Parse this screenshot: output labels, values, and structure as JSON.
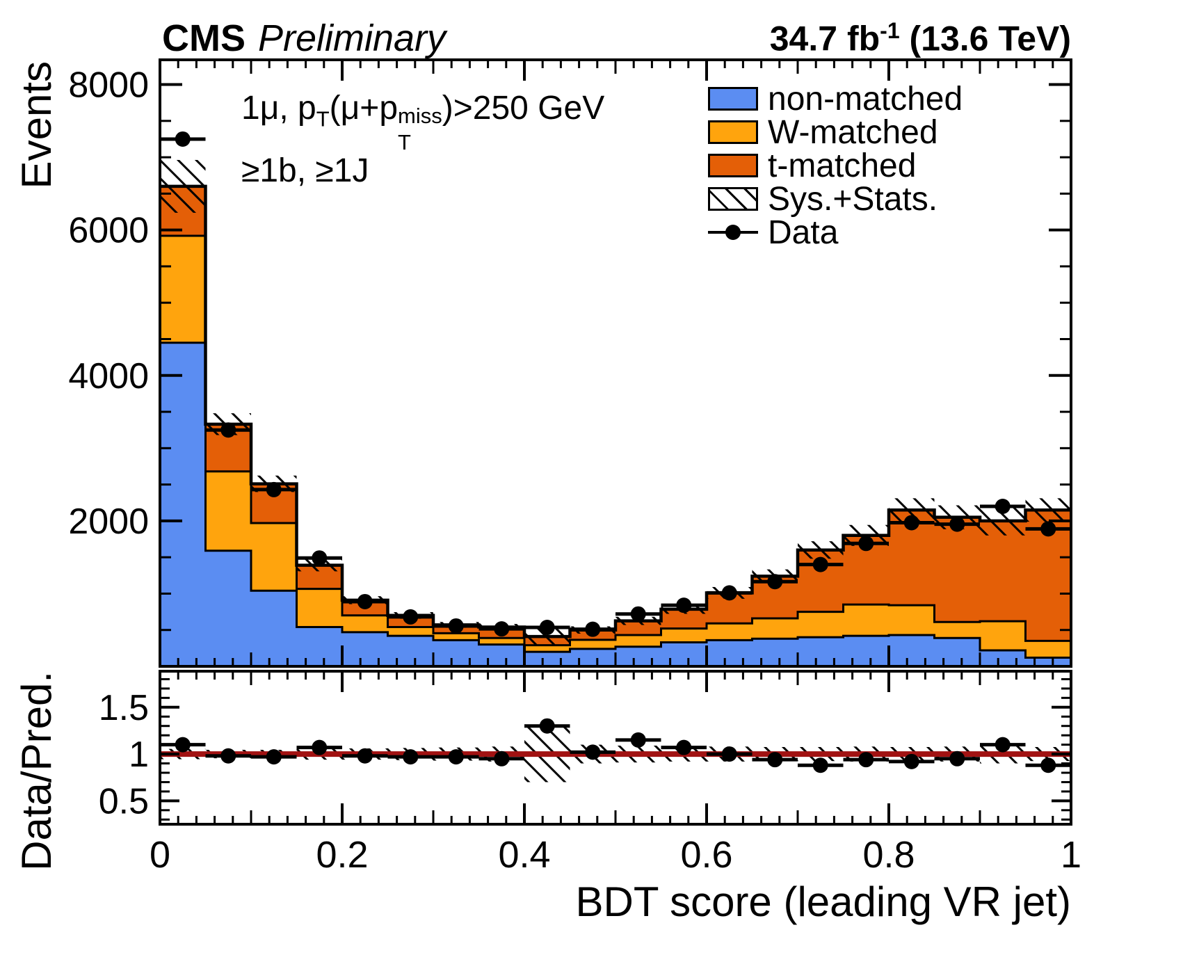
{
  "header": {
    "experiment": "CMS",
    "status": "Preliminary",
    "lumi_value": "34.7 fb",
    "lumi_sup": "-1",
    "lumi_energy": " (13.6 TeV)"
  },
  "annotation": {
    "line1_a": "1μ, p",
    "line1_sub1": "T",
    "line1_b": "(μ+p",
    "line1_sup2": "miss",
    "line1_sub2": "T",
    "line1_c": ")>250 GeV",
    "line2": "≥1b, ≥1J"
  },
  "legend": {
    "items": [
      {
        "label": "non-matched",
        "type": "fill",
        "color": "#5b8df2"
      },
      {
        "label": "W-matched",
        "type": "fill",
        "color": "#ffa40d"
      },
      {
        "label": "t-matched",
        "type": "fill",
        "color": "#e45f07"
      },
      {
        "label": "Sys.+Stats.",
        "type": "hatch",
        "color": "#ffffff"
      },
      {
        "label": "Data",
        "type": "marker",
        "color": "#000000"
      }
    ]
  },
  "axes": {
    "y_title": "Events",
    "ratio_y_title": "Data/Pred.",
    "x_title": "BDT score (leading VR jet)"
  },
  "colors": {
    "non_matched": "#5b8df2",
    "w_matched": "#ffa40d",
    "t_matched": "#e45f07",
    "ratio_line": "#a11212",
    "frame": "#000000",
    "background": "#ffffff"
  },
  "chart_data": {
    "type": "bar",
    "subtype": "stacked-histogram-with-ratio-panel",
    "title": "",
    "xlabel": "BDT score (leading VR jet)",
    "ylabel": "Events",
    "ratio_ylabel": "Data/Pred.",
    "xlim": [
      0,
      1
    ],
    "ylim": [
      0,
      8340
    ],
    "ratio_ylim": [
      0.25,
      1.885
    ],
    "x_major_ticks": [
      0,
      0.2,
      0.4,
      0.6,
      0.8,
      1
    ],
    "x_tick_labels": [
      "0",
      "0.2",
      "0.4",
      "0.6",
      "0.8",
      "1"
    ],
    "x_mid_step": 0.1,
    "x_minor_step": 0.02,
    "y_major_ticks": [
      2000,
      4000,
      6000,
      8000
    ],
    "y_tick_labels": [
      "2000",
      "4000",
      "6000",
      "8000"
    ],
    "y_minor_step": 500,
    "ratio_major_ticks": [
      0.5,
      1,
      1.5
    ],
    "ratio_tick_labels": [
      "0.5",
      "1",
      "1.5"
    ],
    "ratio_minor_step": 0.1,
    "ratio_reference_line": 1.0,
    "grid": false,
    "legend_position": "top-right",
    "bin_edges": [
      0,
      0.05,
      0.1,
      0.15,
      0.2,
      0.25,
      0.3,
      0.35,
      0.4,
      0.45,
      0.5,
      0.55,
      0.6,
      0.65,
      0.7,
      0.75,
      0.8,
      0.85,
      0.9,
      0.95,
      1.0
    ],
    "series": [
      {
        "name": "non-matched",
        "color": "#5b8df2",
        "values": [
          4450,
          1590,
          1040,
          540,
          470,
          420,
          360,
          300,
          200,
          240,
          270,
          330,
          360,
          380,
          400,
          420,
          430,
          390,
          220,
          120
        ]
      },
      {
        "name": "W-matched",
        "color": "#ffa40d",
        "values": [
          1470,
          1090,
          930,
          525,
          230,
          120,
          95,
          90,
          90,
          125,
          160,
          190,
          230,
          280,
          350,
          430,
          410,
          220,
          400,
          230
        ]
      },
      {
        "name": "t-matched",
        "color": "#e45f07",
        "values": [
          680,
          650,
          540,
          325,
          210,
          160,
          115,
          150,
          120,
          135,
          195,
          265,
          420,
          580,
          850,
          950,
          1310,
          1440,
          1380,
          1800
        ]
      }
    ],
    "totals": [
      6600,
      3330,
      2510,
      1390,
      910,
      700,
      570,
      540,
      410,
      500,
      625,
      785,
      1010,
      1240,
      1600,
      1800,
      2150,
      2050,
      2000,
      2150
    ],
    "sys_rel": [
      0.055,
      0.045,
      0.045,
      0.06,
      0.06,
      0.065,
      0.07,
      0.08,
      0.3,
      0.1,
      0.09,
      0.08,
      0.08,
      0.075,
      0.075,
      0.08,
      0.075,
      0.08,
      0.1,
      0.075
    ],
    "data_points": {
      "name": "Data",
      "values": [
        7250,
        3250,
        2430,
        1490,
        890,
        680,
        555,
        515,
        535,
        510,
        720,
        840,
        1010,
        1165,
        1400,
        1690,
        1975,
        1955,
        2200,
        1890
      ]
    },
    "ratio": [
      1.1,
      0.98,
      0.97,
      1.07,
      0.98,
      0.97,
      0.97,
      0.95,
      1.3,
      1.02,
      1.15,
      1.07,
      1.0,
      0.94,
      0.88,
      0.94,
      0.92,
      0.95,
      1.1,
      0.88
    ]
  }
}
